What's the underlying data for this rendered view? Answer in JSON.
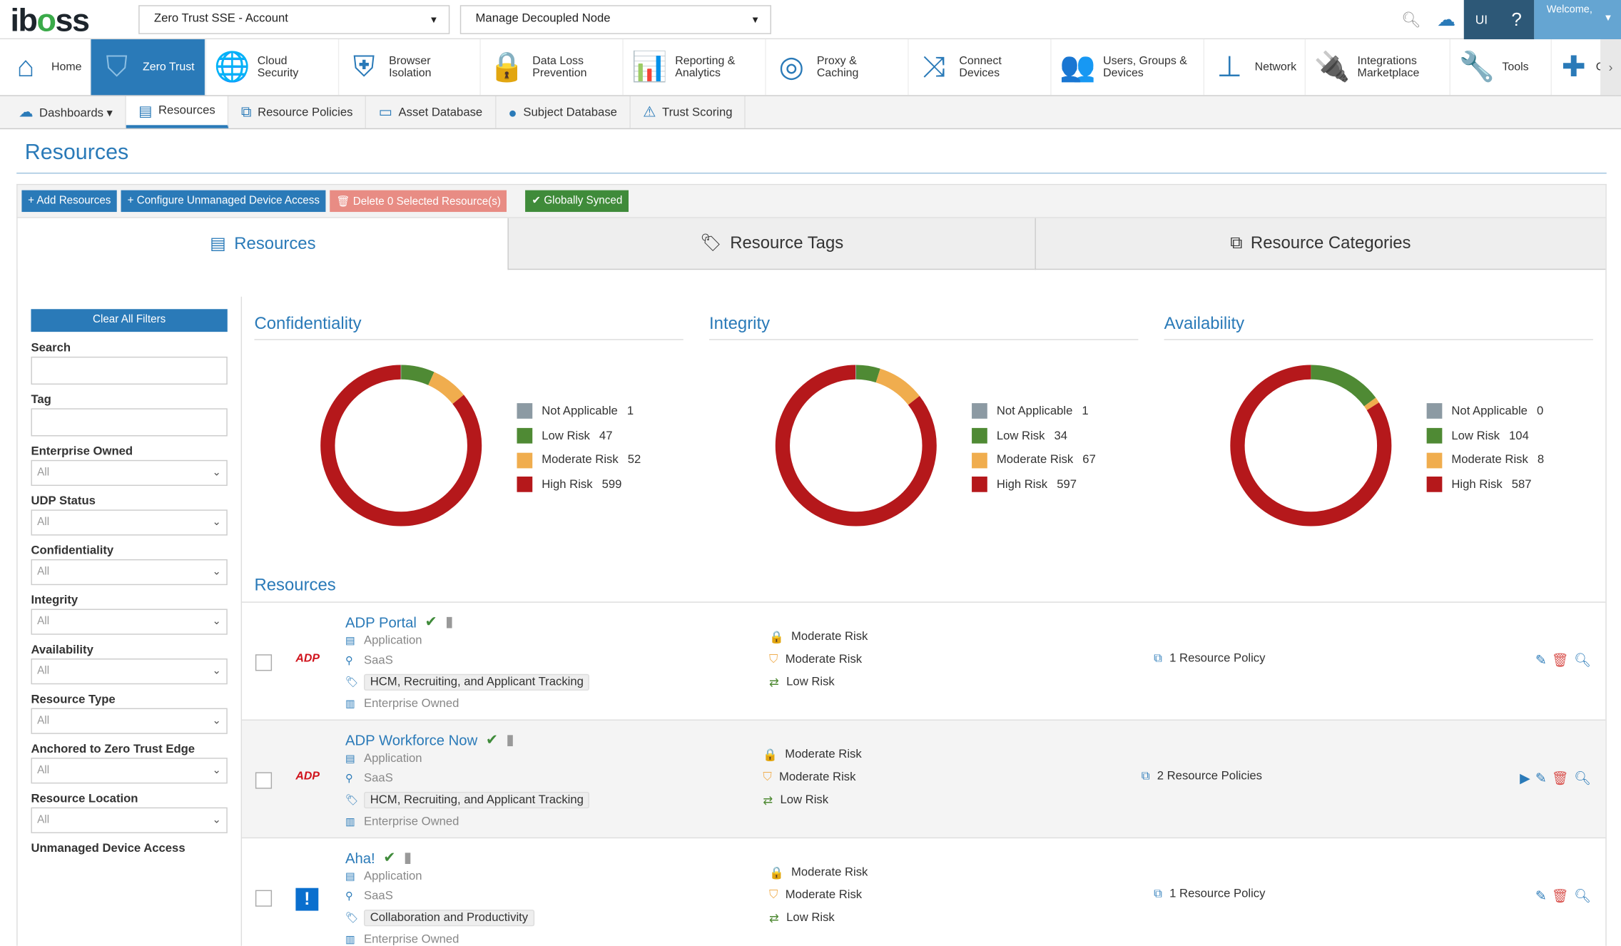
{
  "header": {
    "logo": "iboss",
    "account_select": "Zero Trust SSE - Account",
    "node_select": "Manage Decoupled Node",
    "welcome": "Welcome,"
  },
  "nav": [
    {
      "label": "Home",
      "icon": "home-icon",
      "g": "⌂"
    },
    {
      "label": "Zero Trust",
      "icon": "zero-trust-icon",
      "g": "⛉",
      "active": true
    },
    {
      "label": "Cloud Security",
      "icon": "globe-lock-icon",
      "g": "🌐"
    },
    {
      "label": "Browser Isolation",
      "icon": "browser-shield-icon",
      "g": "⛨"
    },
    {
      "label": "Data Loss Prevention",
      "icon": "file-lock-icon",
      "g": "🔒"
    },
    {
      "label": "Reporting & Analytics",
      "icon": "analytics-icon",
      "g": "📊"
    },
    {
      "label": "Proxy & Caching",
      "icon": "proxy-globe-icon",
      "g": "◎"
    },
    {
      "label": "Connect Devices",
      "icon": "connect-icon",
      "g": "⤨"
    },
    {
      "label": "Users, Groups & Devices",
      "icon": "users-icon",
      "g": "👥"
    },
    {
      "label": "Network",
      "icon": "network-icon",
      "g": "⊥"
    },
    {
      "label": "Integrations Marketplace",
      "icon": "plug-icon",
      "g": "🔌"
    },
    {
      "label": "Tools",
      "icon": "wrench-icon",
      "g": "🔧"
    },
    {
      "label": "Cl",
      "icon": "plus-icon",
      "g": "✚"
    }
  ],
  "subnav": [
    {
      "label": "Dashboards ▾",
      "icon": "cloud-icon",
      "g": "☁"
    },
    {
      "label": "Resources",
      "icon": "resources-icon",
      "g": "▤",
      "active": true
    },
    {
      "label": "Resource Policies",
      "icon": "policies-icon",
      "g": "⧉"
    },
    {
      "label": "Asset Database",
      "icon": "monitor-icon",
      "g": "▭"
    },
    {
      "label": "Subject Database",
      "icon": "user-icon",
      "g": "●"
    },
    {
      "label": "Trust Scoring",
      "icon": "trust-scoring-icon",
      "g": "⚠"
    }
  ],
  "page_title": "Resources",
  "toolbar": {
    "add": "+ Add Resources",
    "configure": "+ Configure Unmanaged Device Access",
    "delete": "🗑 Delete 0 Selected Resource(s)",
    "synced": "✔ Globally Synced"
  },
  "tabs": [
    {
      "label": "Resources",
      "g": "▤"
    },
    {
      "label": "Resource Tags",
      "g": "🏷"
    },
    {
      "label": "Resource Categories",
      "g": "⧉"
    }
  ],
  "filters": {
    "clear": "Clear All Filters",
    "search": "Search",
    "tag": "Tag",
    "dropdowns": [
      {
        "label": "Enterprise Owned",
        "value": "All"
      },
      {
        "label": "UDP Status",
        "value": "All"
      },
      {
        "label": "Confidentiality",
        "value": "All"
      },
      {
        "label": "Integrity",
        "value": "All"
      },
      {
        "label": "Availability",
        "value": "All"
      },
      {
        "label": "Resource Type",
        "value": "All"
      },
      {
        "label": "Anchored to Zero Trust Edge",
        "value": "All"
      },
      {
        "label": "Resource Location",
        "value": "All"
      }
    ],
    "last": "Unmanaged Device Access"
  },
  "colors": {
    "not_applicable": "#8c9aa3",
    "low": "#4f8a34",
    "moderate": "#f0ad4e",
    "high": "#b5181b"
  },
  "chart_data": [
    {
      "type": "pie",
      "title": "Confidentiality",
      "categories": [
        "Not Applicable",
        "Low Risk",
        "Moderate Risk",
        "High Risk"
      ],
      "values": [
        1,
        47,
        52,
        599
      ]
    },
    {
      "type": "pie",
      "title": "Integrity",
      "categories": [
        "Not Applicable",
        "Low Risk",
        "Moderate Risk",
        "High Risk"
      ],
      "values": [
        1,
        34,
        67,
        597
      ]
    },
    {
      "type": "pie",
      "title": "Availability",
      "categories": [
        "Not Applicable",
        "Low Risk",
        "Moderate Risk",
        "High Risk"
      ],
      "values": [
        0,
        104,
        8,
        587
      ]
    }
  ],
  "resources_heading": "Resources",
  "resources": [
    {
      "name": "ADP Portal",
      "logo": "ADP",
      "type": "Application",
      "location": "SaaS",
      "tag": "HCM, Recruiting, and Applicant Tracking",
      "owned": "Enterprise Owned",
      "risks": [
        "Moderate Risk",
        "Moderate Risk",
        "Low Risk"
      ],
      "policies": "1 Resource Policy"
    },
    {
      "name": "ADP Workforce Now",
      "logo": "ADP",
      "type": "Application",
      "location": "SaaS",
      "tag": "HCM, Recruiting, and Applicant Tracking",
      "owned": "Enterprise Owned",
      "risks": [
        "Moderate Risk",
        "Moderate Risk",
        "Low Risk"
      ],
      "policies": "2 Resource Policies"
    },
    {
      "name": "Aha!",
      "logo": "!",
      "type": "Application",
      "location": "SaaS",
      "tag": "Collaboration and Productivity",
      "owned": "Enterprise Owned",
      "risks": [
        "Moderate Risk",
        "Moderate Risk",
        "Low Risk"
      ],
      "policies": "1 Resource Policy"
    }
  ]
}
